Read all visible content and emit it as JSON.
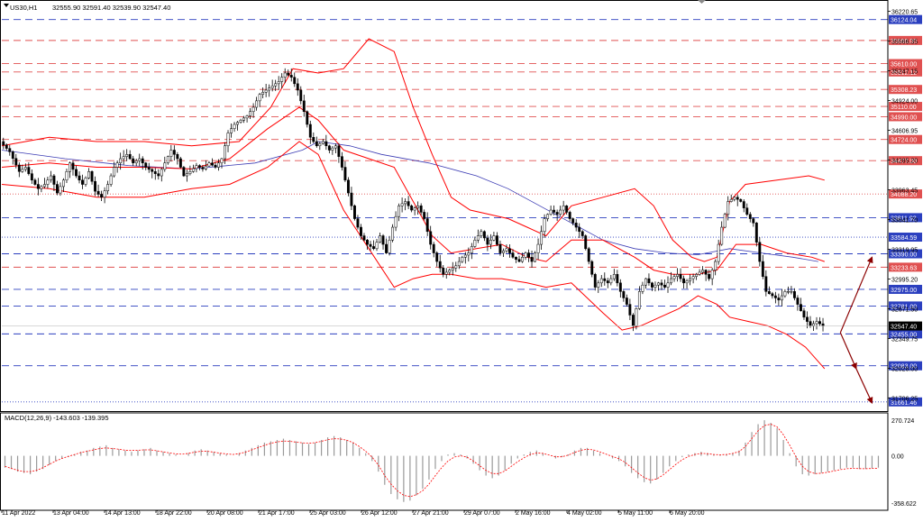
{
  "header": {
    "symbol": "US30,H1",
    "ohlc": "32555.90 32591.40 32539.90 32547.40"
  },
  "macd": {
    "title": "MACD(12,26,9) -143.603 -139.395",
    "axis_labels": [
      "270.724",
      "0.00",
      "-358.622"
    ],
    "range": [
      -358.622,
      270.724
    ]
  },
  "colors": {
    "background": "#ffffff",
    "candle": "#000000",
    "bollinger": "#ff0000",
    "moving_average": "#3c3cb4",
    "level_blue": "#2b3fbf",
    "level_red": "#e05050",
    "arrow": "#8b0000",
    "current_price_tag": "#000000"
  },
  "chart_data": {
    "type": "candlestick",
    "x_tick_labels": [
      "11 Apr 2022",
      "13 Apr 04:00",
      "14 Apr 13:00",
      "18 Apr 22:00",
      "20 Apr 08:00",
      "21 Apr 17:00",
      "25 Apr 03:00",
      "26 Apr 12:00",
      "27 Apr 21:00",
      "29 Apr 07:00",
      "2 May 16:00",
      "4 May 02:00",
      "5 May 11:00",
      "6 May 20:00"
    ],
    "y_range": [
      31554,
      36310
    ],
    "y_tick_labels": [
      "36220.65",
      "35566.35",
      "35247.15",
      "34924.00",
      "34606.95",
      "34285.20",
      "33963.45",
      "33641.70",
      "33319.95",
      "32995.20",
      "32671.50",
      "32349.75",
      "32028.00",
      "31706.25"
    ],
    "price_levels": [
      {
        "value": 36124.04,
        "label": "36124.04",
        "color": "blue",
        "style": "dashed"
      },
      {
        "value": 35880.0,
        "label": "35880.00",
        "color": "red",
        "style": "dashed"
      },
      {
        "value": 35610.0,
        "label": "35610.00",
        "color": "red",
        "style": "dashed"
      },
      {
        "value": 35512.12,
        "label": "35512.12",
        "color": "red",
        "style": "dashed"
      },
      {
        "value": 35308.23,
        "label": "35308.23",
        "color": "red",
        "style": "dashed"
      },
      {
        "value": 35110.0,
        "label": "35110.00",
        "color": "red",
        "style": "dashed"
      },
      {
        "value": 34990.0,
        "label": "34990.00",
        "color": "red",
        "style": "dashed"
      },
      {
        "value": 34724.0,
        "label": "34724.00",
        "color": "red",
        "style": "dashed"
      },
      {
        "value": 34477.0,
        "label": "34477.00",
        "color": "red",
        "style": "dashed"
      },
      {
        "value": 34088.2,
        "label": "34088.20",
        "color": "red",
        "style": "dotted"
      },
      {
        "value": 33811.92,
        "label": "33811.92",
        "color": "blue",
        "style": "dashed"
      },
      {
        "value": 33584.59,
        "label": "33584.59",
        "color": "blue",
        "style": "dotted"
      },
      {
        "value": 33390.0,
        "label": "33390.00",
        "color": "blue",
        "style": "dashed"
      },
      {
        "value": 33233.63,
        "label": "33233.63",
        "color": "red",
        "style": "dashed"
      },
      {
        "value": 32975.0,
        "label": "32975.00",
        "color": "blue",
        "style": "dashed"
      },
      {
        "value": 32781.0,
        "label": "32781.00",
        "color": "blue",
        "style": "dashed"
      },
      {
        "value": 32455.0,
        "label": "32455.00",
        "color": "blue",
        "style": "dashed"
      },
      {
        "value": 32083.0,
        "label": "32083.00",
        "color": "blue",
        "style": "dashed"
      },
      {
        "value": 31661.46,
        "label": "31661.46",
        "color": "blue",
        "style": "dotted"
      }
    ],
    "current_price": {
      "value": 32547.4,
      "label": "32547.40"
    },
    "price_path": [
      [
        0,
        34700
      ],
      [
        3,
        34580
      ],
      [
        6,
        34350
      ],
      [
        8,
        34400
      ],
      [
        10,
        34250
      ],
      [
        12,
        34150
      ],
      [
        14,
        34200
      ],
      [
        16,
        34300
      ],
      [
        18,
        34100
      ],
      [
        20,
        34250
      ],
      [
        22,
        34450
      ],
      [
        24,
        34300
      ],
      [
        26,
        34200
      ],
      [
        28,
        34350
      ],
      [
        30,
        34120
      ],
      [
        32,
        34050
      ],
      [
        34,
        34200
      ],
      [
        36,
        34400
      ],
      [
        38,
        34500
      ],
      [
        40,
        34550
      ],
      [
        42,
        34450
      ],
      [
        44,
        34500
      ],
      [
        46,
        34400
      ],
      [
        48,
        34350
      ],
      [
        50,
        34300
      ],
      [
        52,
        34450
      ],
      [
        54,
        34600
      ],
      [
        56,
        34500
      ],
      [
        58,
        34300
      ],
      [
        60,
        34350
      ],
      [
        62,
        34420
      ],
      [
        64,
        34380
      ],
      [
        66,
        34450
      ],
      [
        68,
        34400
      ],
      [
        70,
        34500
      ],
      [
        72,
        34800
      ],
      [
        74,
        34900
      ],
      [
        76,
        34950
      ],
      [
        78,
        35000
      ],
      [
        80,
        35100
      ],
      [
        82,
        35250
      ],
      [
        84,
        35300
      ],
      [
        86,
        35350
      ],
      [
        88,
        35400
      ],
      [
        90,
        35500
      ],
      [
        92,
        35450
      ],
      [
        94,
        35300
      ],
      [
        96,
        35050
      ],
      [
        98,
        34750
      ],
      [
        100,
        34650
      ],
      [
        102,
        34700
      ],
      [
        104,
        34600
      ],
      [
        106,
        34650
      ],
      [
        108,
        34400
      ],
      [
        110,
        34100
      ],
      [
        112,
        33800
      ],
      [
        114,
        33600
      ],
      [
        116,
        33500
      ],
      [
        118,
        33450
      ],
      [
        120,
        33600
      ],
      [
        122,
        33400
      ],
      [
        124,
        33700
      ],
      [
        126,
        33950
      ],
      [
        128,
        34000
      ],
      [
        130,
        33900
      ],
      [
        132,
        33950
      ],
      [
        134,
        33800
      ],
      [
        136,
        33500
      ],
      [
        138,
        33300
      ],
      [
        140,
        33150
      ],
      [
        142,
        33200
      ],
      [
        144,
        33250
      ],
      [
        146,
        33350
      ],
      [
        148,
        33400
      ],
      [
        150,
        33550
      ],
      [
        152,
        33650
      ],
      [
        154,
        33500
      ],
      [
        156,
        33600
      ],
      [
        158,
        33400
      ],
      [
        160,
        33450
      ],
      [
        162,
        33350
      ],
      [
        164,
        33300
      ],
      [
        166,
        33400
      ],
      [
        168,
        33300
      ],
      [
        170,
        33500
      ],
      [
        172,
        33800
      ],
      [
        174,
        33900
      ],
      [
        176,
        33850
      ],
      [
        178,
        33950
      ],
      [
        180,
        33800
      ],
      [
        182,
        33700
      ],
      [
        184,
        33600
      ],
      [
        186,
        33300
      ],
      [
        188,
        33000
      ],
      [
        190,
        33100
      ],
      [
        192,
        33050
      ],
      [
        194,
        33150
      ],
      [
        196,
        32950
      ],
      [
        198,
        32800
      ],
      [
        200,
        32550
      ],
      [
        202,
        32950
      ],
      [
        204,
        33100
      ],
      [
        206,
        33000
      ],
      [
        208,
        33050
      ],
      [
        210,
        33000
      ],
      [
        212,
        33100
      ],
      [
        214,
        33150
      ],
      [
        216,
        33050
      ],
      [
        218,
        33100
      ],
      [
        220,
        33150
      ],
      [
        222,
        33200
      ],
      [
        224,
        33100
      ],
      [
        226,
        33300
      ],
      [
        228,
        33700
      ],
      [
        230,
        34000
      ],
      [
        232,
        34050
      ],
      [
        234,
        34000
      ],
      [
        236,
        33850
      ],
      [
        238,
        33750
      ],
      [
        240,
        33300
      ],
      [
        242,
        32950
      ],
      [
        244,
        32900
      ],
      [
        246,
        32850
      ],
      [
        248,
        32950
      ],
      [
        250,
        32950
      ],
      [
        252,
        32800
      ],
      [
        254,
        32650
      ],
      [
        256,
        32550
      ],
      [
        258,
        32600
      ],
      [
        260,
        32547
      ]
    ],
    "bollinger_upper_path": [
      [
        0,
        34650
      ],
      [
        15,
        34750
      ],
      [
        30,
        34700
      ],
      [
        45,
        34700
      ],
      [
        60,
        34650
      ],
      [
        75,
        34700
      ],
      [
        85,
        35100
      ],
      [
        92,
        35550
      ],
      [
        100,
        35500
      ],
      [
        108,
        35550
      ],
      [
        116,
        35900
      ],
      [
        124,
        35750
      ],
      [
        130,
        35100
      ],
      [
        136,
        34550
      ],
      [
        142,
        34050
      ],
      [
        148,
        33900
      ],
      [
        154,
        33850
      ],
      [
        160,
        33800
      ],
      [
        166,
        33700
      ],
      [
        172,
        33600
      ],
      [
        180,
        33950
      ],
      [
        190,
        34050
      ],
      [
        200,
        34150
      ],
      [
        206,
        33950
      ],
      [
        212,
        33550
      ],
      [
        218,
        33350
      ],
      [
        222,
        33300
      ],
      [
        226,
        33350
      ],
      [
        230,
        34000
      ],
      [
        235,
        34200
      ],
      [
        245,
        34250
      ],
      [
        255,
        34300
      ],
      [
        260,
        34250
      ]
    ],
    "bollinger_middle_path": [
      [
        0,
        34400
      ],
      [
        15,
        34450
      ],
      [
        30,
        34400
      ],
      [
        45,
        34400
      ],
      [
        60,
        34380
      ],
      [
        72,
        34500
      ],
      [
        84,
        34850
      ],
      [
        94,
        35100
      ],
      [
        100,
        34950
      ],
      [
        108,
        34600
      ],
      [
        116,
        34500
      ],
      [
        124,
        34400
      ],
      [
        130,
        34000
      ],
      [
        136,
        33600
      ],
      [
        142,
        33400
      ],
      [
        150,
        33450
      ],
      [
        158,
        33500
      ],
      [
        166,
        33350
      ],
      [
        172,
        33300
      ],
      [
        180,
        33550
      ],
      [
        190,
        33550
      ],
      [
        200,
        33350
      ],
      [
        206,
        33200
      ],
      [
        212,
        33150
      ],
      [
        220,
        33150
      ],
      [
        226,
        33200
      ],
      [
        232,
        33500
      ],
      [
        240,
        33500
      ],
      [
        248,
        33400
      ],
      [
        256,
        33350
      ],
      [
        260,
        33300
      ]
    ],
    "bollinger_lower_path": [
      [
        0,
        34200
      ],
      [
        15,
        34150
      ],
      [
        30,
        34050
      ],
      [
        45,
        34050
      ],
      [
        60,
        34150
      ],
      [
        72,
        34200
      ],
      [
        84,
        34400
      ],
      [
        94,
        34700
      ],
      [
        100,
        34550
      ],
      [
        108,
        33900
      ],
      [
        116,
        33450
      ],
      [
        124,
        33000
      ],
      [
        130,
        33100
      ],
      [
        136,
        33150
      ],
      [
        142,
        33150
      ],
      [
        150,
        33100
      ],
      [
        158,
        33100
      ],
      [
        166,
        33050
      ],
      [
        172,
        33000
      ],
      [
        180,
        33050
      ],
      [
        190,
        32700
      ],
      [
        196,
        32500
      ],
      [
        202,
        32550
      ],
      [
        208,
        32650
      ],
      [
        214,
        32750
      ],
      [
        220,
        32900
      ],
      [
        226,
        32800
      ],
      [
        230,
        32650
      ],
      [
        236,
        32600
      ],
      [
        242,
        32550
      ],
      [
        248,
        32450
      ],
      [
        254,
        32300
      ],
      [
        260,
        32050
      ]
    ],
    "moving_average_path": [
      [
        0,
        34600
      ],
      [
        20,
        34500
      ],
      [
        40,
        34420
      ],
      [
        60,
        34380
      ],
      [
        80,
        34450
      ],
      [
        95,
        34600
      ],
      [
        100,
        34700
      ],
      [
        110,
        34650
      ],
      [
        120,
        34550
      ],
      [
        135,
        34450
      ],
      [
        150,
        34300
      ],
      [
        160,
        34150
      ],
      [
        170,
        33950
      ],
      [
        180,
        33750
      ],
      [
        190,
        33550
      ],
      [
        200,
        33450
      ],
      [
        210,
        33400
      ],
      [
        220,
        33380
      ],
      [
        230,
        33450
      ],
      [
        240,
        33400
      ],
      [
        250,
        33350
      ],
      [
        258,
        33300
      ]
    ],
    "projection_arrows": [
      {
        "from": [
          265,
          32470
        ],
        "to": [
          275,
          33350
        ],
        "label": ""
      },
      {
        "from": [
          265,
          32470
        ],
        "to": [
          270,
          32050
        ],
        "label": ""
      },
      {
        "from": [
          270,
          32050
        ],
        "to": [
          275,
          31650
        ],
        "label": ""
      }
    ],
    "macd_histogram": [
      -90,
      -100,
      -120,
      -130,
      -140,
      -120,
      -100,
      -70,
      -40,
      -20,
      -10,
      10,
      30,
      40,
      60,
      70,
      80,
      60,
      50,
      40,
      30,
      40,
      50,
      60,
      40,
      30,
      20,
      10,
      0,
      20,
      40,
      50,
      40,
      30,
      20,
      10,
      0,
      20,
      40,
      60,
      80,
      100,
      110,
      120,
      130,
      120,
      110,
      100,
      90,
      100,
      120,
      140,
      150,
      140,
      120,
      100,
      60,
      20,
      -40,
      -120,
      -220,
      -290,
      -330,
      -350,
      -340,
      -300,
      -250,
      -180,
      -100,
      -40,
      10,
      20,
      10,
      -20,
      -60,
      -110,
      -150,
      -170,
      -150,
      -110,
      -60,
      -20,
      10,
      30,
      40,
      20,
      0,
      -20,
      -10,
      10,
      40,
      60,
      60,
      40,
      20,
      0,
      -20,
      -40,
      -80,
      -130,
      -170,
      -200,
      -210,
      -180,
      -130,
      -80,
      -40,
      -10,
      10,
      20,
      30,
      20,
      10,
      5,
      10,
      20,
      40,
      100,
      180,
      240,
      270,
      250,
      210,
      120,
      20,
      -80,
      -140,
      -150,
      -140,
      -130,
      -120,
      -110,
      -100,
      -90,
      -90,
      -100,
      -100,
      -95,
      -90
    ],
    "macd_signal": [
      -80,
      -95,
      -110,
      -120,
      -120,
      -110,
      -90,
      -65,
      -40,
      -20,
      -5,
      10,
      25,
      35,
      45,
      55,
      60,
      55,
      50,
      42,
      40,
      42,
      45,
      45,
      38,
      30,
      22,
      15,
      12,
      18,
      28,
      35,
      34,
      28,
      20,
      14,
      10,
      16,
      28,
      45,
      62,
      80,
      95,
      105,
      112,
      110,
      104,
      98,
      95,
      100,
      110,
      122,
      130,
      128,
      118,
      100,
      70,
      35,
      -10,
      -70,
      -150,
      -215,
      -265,
      -300,
      -310,
      -295,
      -265,
      -215,
      -150,
      -90,
      -40,
      -10,
      0,
      -10,
      -40,
      -75,
      -110,
      -135,
      -135,
      -115,
      -80,
      -45,
      -15,
      10,
      22,
      18,
      5,
      -8,
      -8,
      5,
      25,
      42,
      50,
      45,
      30,
      12,
      -5,
      -22,
      -50,
      -90,
      -130,
      -165,
      -185,
      -175,
      -145,
      -105,
      -65,
      -30,
      -5,
      10,
      18,
      16,
      10,
      8,
      10,
      18,
      32,
      70,
      130,
      190,
      230,
      240,
      220,
      160,
      80,
      -10,
      -80,
      -120,
      -135,
      -132,
      -125,
      -115,
      -105,
      -98,
      -95,
      -97,
      -98,
      -96,
      -94
    ]
  }
}
